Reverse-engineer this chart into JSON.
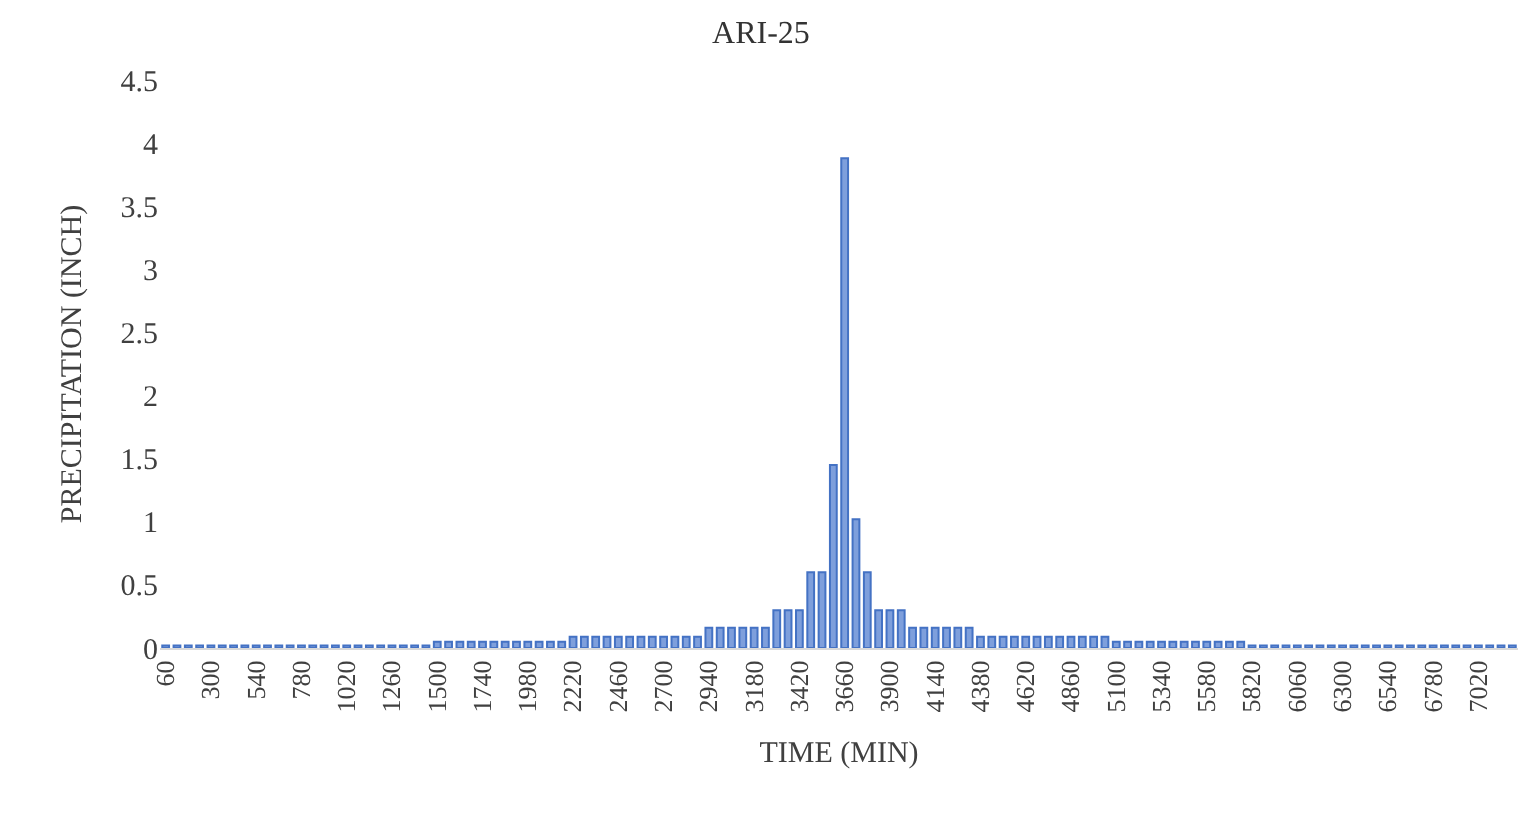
{
  "chart_data": {
    "type": "bar",
    "title": "ARI-25",
    "xlabel": "TIME (MIN)",
    "ylabel": "PRECIPITATION (INCH)",
    "categories": [
      "60",
      null,
      null,
      null,
      "300",
      null,
      null,
      null,
      "540",
      null,
      null,
      null,
      "780",
      null,
      null,
      null,
      "1020",
      null,
      null,
      null,
      "1260",
      null,
      null,
      null,
      "1500",
      null,
      null,
      null,
      "1740",
      null,
      null,
      null,
      "1980",
      null,
      null,
      null,
      "2220",
      null,
      null,
      null,
      "2460",
      null,
      null,
      null,
      "2700",
      null,
      null,
      null,
      "2940",
      null,
      null,
      null,
      "3180",
      null,
      null,
      null,
      "3420",
      null,
      null,
      null,
      "3660",
      null,
      null,
      null,
      "3900",
      null,
      null,
      null,
      "4140",
      null,
      null,
      null,
      "4380",
      null,
      null,
      null,
      "4620",
      null,
      null,
      null,
      "4860",
      null,
      null,
      null,
      "5100",
      null,
      null,
      null,
      "5340",
      null,
      null,
      null,
      "5580",
      null,
      null,
      null,
      "5820",
      null,
      null,
      null,
      "6060",
      null,
      null,
      null,
      "6300",
      null,
      null,
      null,
      "6540",
      null,
      null,
      null,
      "6780",
      null,
      null,
      null,
      "7020",
      null,
      null,
      null
    ],
    "values": [
      0.02,
      0.02,
      0.02,
      0.02,
      0.02,
      0.02,
      0.02,
      0.02,
      0.02,
      0.02,
      0.02,
      0.02,
      0.02,
      0.02,
      0.02,
      0.02,
      0.02,
      0.02,
      0.02,
      0.02,
      0.02,
      0.02,
      0.02,
      0.02,
      0.05,
      0.05,
      0.05,
      0.05,
      0.05,
      0.05,
      0.05,
      0.05,
      0.05,
      0.05,
      0.05,
      0.05,
      0.09,
      0.09,
      0.09,
      0.09,
      0.09,
      0.09,
      0.09,
      0.09,
      0.09,
      0.09,
      0.09,
      0.09,
      0.16,
      0.16,
      0.16,
      0.16,
      0.16,
      0.16,
      0.3,
      0.3,
      0.3,
      0.6,
      0.6,
      1.45,
      3.88,
      1.02,
      0.6,
      0.3,
      0.3,
      0.3,
      0.16,
      0.16,
      0.16,
      0.16,
      0.16,
      0.16,
      0.09,
      0.09,
      0.09,
      0.09,
      0.09,
      0.09,
      0.09,
      0.09,
      0.09,
      0.09,
      0.09,
      0.09,
      0.05,
      0.05,
      0.05,
      0.05,
      0.05,
      0.05,
      0.05,
      0.05,
      0.05,
      0.05,
      0.05,
      0.05,
      0.02,
      0.02,
      0.02,
      0.02,
      0.02,
      0.02,
      0.02,
      0.02,
      0.02,
      0.02,
      0.02,
      0.02,
      0.02,
      0.02,
      0.02,
      0.02,
      0.02,
      0.02,
      0.02,
      0.02,
      0.02,
      0.02,
      0.02,
      0.02
    ],
    "color": "#4472c4",
    "ylim": [
      0,
      4.5
    ],
    "yticks": [
      0,
      0.5,
      1,
      1.5,
      2,
      2.5,
      3,
      3.5,
      4,
      4.5
    ],
    "grid": false,
    "legend": false
  }
}
